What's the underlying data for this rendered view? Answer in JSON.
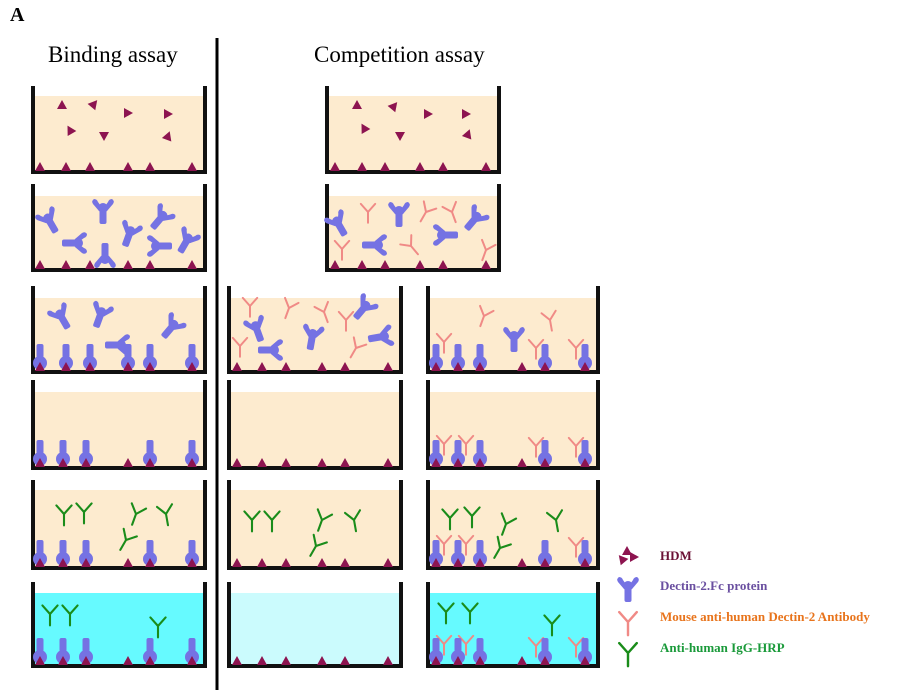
{
  "panel_label": "A",
  "headings": {
    "binding": "Binding assay",
    "competition": "Competition assay"
  },
  "colors": {
    "buffer": "#fdebcf",
    "substrate_developed": "#66faff",
    "substrate_pale": "#cbfbfd",
    "well_wall": "#111111",
    "hdm": "#8d1450",
    "dectin": "#7572e3",
    "mouse_ab": "#f08a86",
    "igg_hrp": "#1a8c1a"
  },
  "legend": [
    {
      "icon": "hdm-icon",
      "label": "HDM",
      "color": "#6b1035"
    },
    {
      "icon": "dectin-icon",
      "label": "Dectin-2.Fc protein",
      "color": "#6a4fa0"
    },
    {
      "icon": "mouse-antibody-icon",
      "label": "Mouse anti-human Dectin-2 Antibody",
      "color": "#e8741c"
    },
    {
      "icon": "igg-hrp-icon",
      "label": "Anti-human IgG-HRP",
      "color": "#1a9a3a"
    }
  ]
}
